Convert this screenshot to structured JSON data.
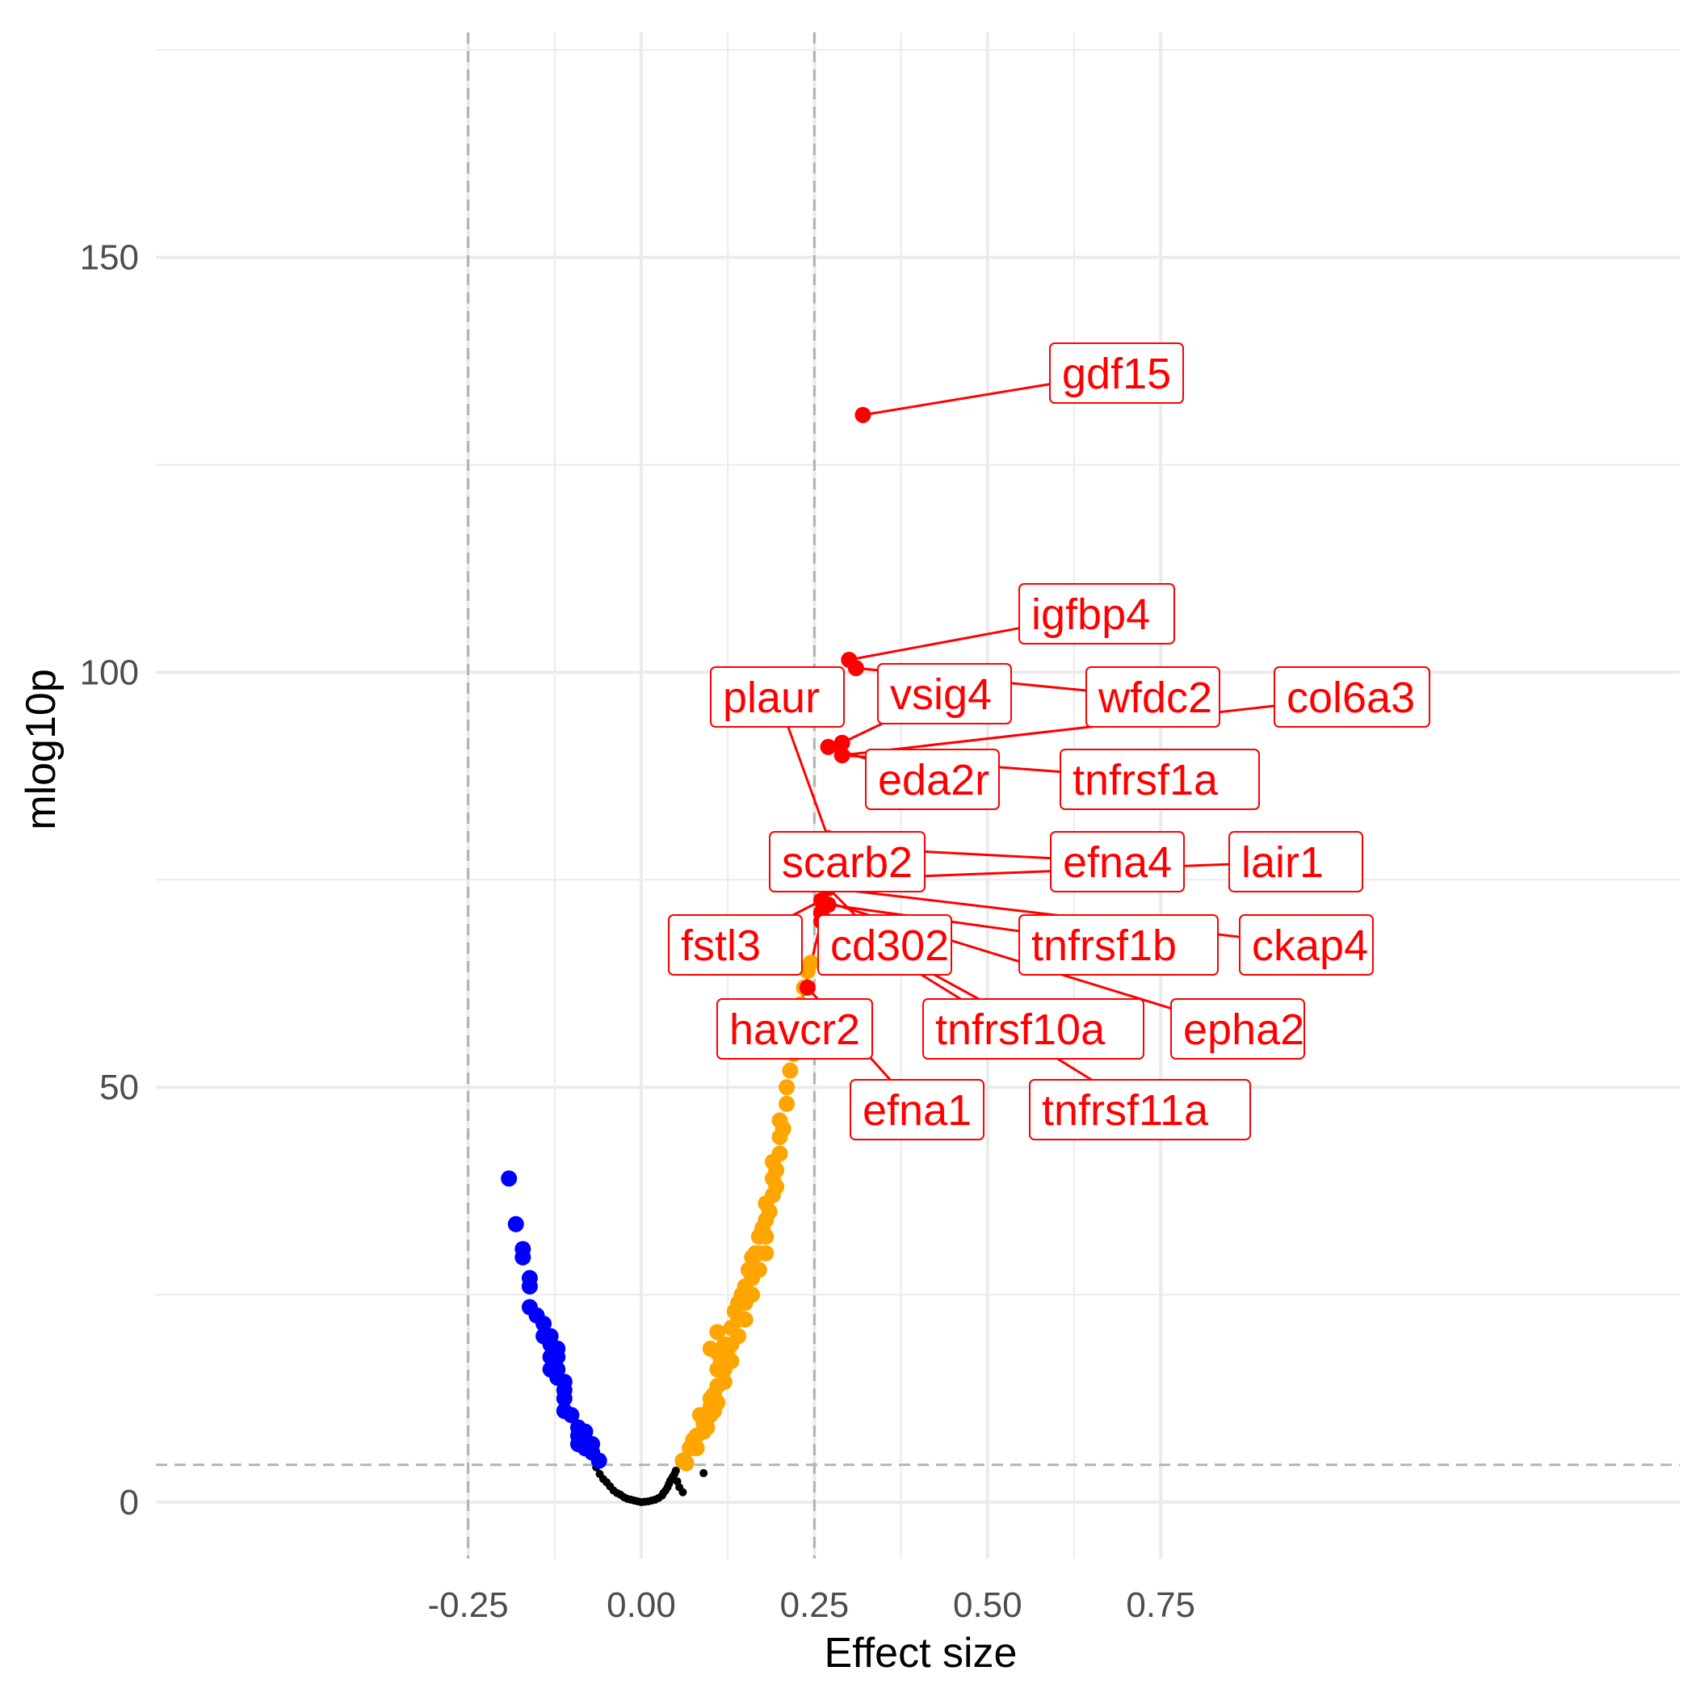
{
  "chart_data": {
    "type": "scatter",
    "title": "",
    "xlabel": "Effect size",
    "ylabel": "mlog10p",
    "xlim": [
      -0.35,
      0.75
    ],
    "ylim": [
      -7,
      175
    ],
    "x_ticks": [
      {
        "value": -0.25,
        "label": "-0.25"
      },
      {
        "value": 0.0,
        "label": "0.00"
      },
      {
        "value": 0.25,
        "label": "0.25"
      },
      {
        "value": 0.5,
        "label": "0.50"
      },
      {
        "value": 0.75,
        "label": "0.75"
      }
    ],
    "y_ticks": [
      {
        "value": 0,
        "label": "0"
      },
      {
        "value": 50,
        "label": "50"
      },
      {
        "value": 100,
        "label": "100"
      },
      {
        "value": 150,
        "label": "150"
      }
    ],
    "grid": true,
    "threshold_lines": {
      "x": [
        -0.25,
        0.25
      ],
      "y": [
        4.5
      ]
    },
    "colors": {
      "background": "#ffffff",
      "grid": "#ebebeb",
      "threshold": "#b3b3b3",
      "not_significant": "#000000",
      "negative": "#0000ff",
      "positive": "#ffa500",
      "highlighted": "#ff0000"
    },
    "series": [
      {
        "color": "#000000",
        "points": [
          [
            -0.065,
            4.2
          ],
          [
            -0.06,
            3.4
          ],
          [
            -0.055,
            2.8
          ],
          [
            -0.05,
            2.4
          ],
          [
            -0.045,
            1.9
          ],
          [
            -0.04,
            1.4
          ],
          [
            -0.035,
            1.1
          ],
          [
            -0.03,
            0.9
          ],
          [
            -0.025,
            0.6
          ],
          [
            -0.02,
            0.4
          ],
          [
            -0.015,
            0.3
          ],
          [
            -0.01,
            0.2
          ],
          [
            -0.005,
            0.1
          ],
          [
            0.0,
            0.0
          ],
          [
            0.005,
            0.05
          ],
          [
            0.01,
            0.1
          ],
          [
            0.015,
            0.2
          ],
          [
            0.02,
            0.3
          ],
          [
            0.025,
            0.5
          ],
          [
            0.03,
            0.8
          ],
          [
            0.032,
            1.1
          ],
          [
            0.035,
            1.4
          ],
          [
            0.038,
            1.8
          ],
          [
            0.04,
            2.2
          ],
          [
            0.042,
            2.6
          ],
          [
            0.045,
            3.0
          ],
          [
            0.048,
            3.4
          ],
          [
            0.05,
            3.8
          ],
          [
            0.052,
            2.5
          ],
          [
            0.055,
            1.8
          ],
          [
            0.06,
            1.2
          ],
          [
            0.09,
            3.5
          ]
        ]
      },
      {
        "color": "#0000ff",
        "points": [
          [
            -0.191,
            39
          ],
          [
            -0.181,
            33.5
          ],
          [
            -0.171,
            30.5
          ],
          [
            -0.171,
            29.5
          ],
          [
            -0.161,
            27
          ],
          [
            -0.161,
            26
          ],
          [
            -0.161,
            23.5
          ],
          [
            -0.151,
            22.5
          ],
          [
            -0.141,
            21.5
          ],
          [
            -0.141,
            20
          ],
          [
            -0.131,
            20
          ],
          [
            -0.131,
            19
          ],
          [
            -0.121,
            18.5
          ],
          [
            -0.121,
            17.5
          ],
          [
            -0.131,
            17.5
          ],
          [
            -0.131,
            16
          ],
          [
            -0.121,
            16
          ],
          [
            -0.121,
            15
          ],
          [
            -0.111,
            14.5
          ],
          [
            -0.111,
            13.5
          ],
          [
            -0.111,
            12.5
          ],
          [
            -0.111,
            11
          ],
          [
            -0.101,
            10.5
          ],
          [
            -0.091,
            9
          ],
          [
            -0.091,
            8
          ],
          [
            -0.081,
            8.5
          ],
          [
            -0.081,
            7.5
          ],
          [
            -0.091,
            7
          ],
          [
            -0.081,
            6.5
          ],
          [
            -0.071,
            7
          ],
          [
            -0.071,
            6
          ],
          [
            -0.061,
            5
          ]
        ]
      },
      {
        "color": "#ffa500",
        "points": [
          [
            0.06,
            5
          ],
          [
            0.065,
            4.7
          ],
          [
            0.07,
            6.5
          ],
          [
            0.075,
            7.5
          ],
          [
            0.08,
            8
          ],
          [
            0.08,
            6.5
          ],
          [
            0.085,
            10.5
          ],
          [
            0.09,
            9.5
          ],
          [
            0.09,
            8.5
          ],
          [
            0.095,
            9
          ],
          [
            0.1,
            10.5
          ],
          [
            0.1,
            11.5
          ],
          [
            0.1,
            12.5
          ],
          [
            0.105,
            13
          ],
          [
            0.105,
            11
          ],
          [
            0.1,
            18.5
          ],
          [
            0.11,
            20.5
          ],
          [
            0.11,
            18
          ],
          [
            0.11,
            16
          ],
          [
            0.11,
            14
          ],
          [
            0.11,
            12
          ],
          [
            0.115,
            17
          ],
          [
            0.12,
            19
          ],
          [
            0.12,
            16
          ],
          [
            0.12,
            14.5
          ],
          [
            0.125,
            18.5
          ],
          [
            0.13,
            21
          ],
          [
            0.13,
            19
          ],
          [
            0.13,
            17
          ],
          [
            0.135,
            23
          ],
          [
            0.14,
            24
          ],
          [
            0.14,
            22
          ],
          [
            0.14,
            20
          ],
          [
            0.145,
            25
          ],
          [
            0.15,
            26
          ],
          [
            0.15,
            24
          ],
          [
            0.15,
            22
          ],
          [
            0.155,
            28
          ],
          [
            0.16,
            29.5
          ],
          [
            0.16,
            27
          ],
          [
            0.16,
            25
          ],
          [
            0.165,
            30
          ],
          [
            0.17,
            32
          ],
          [
            0.17,
            30
          ],
          [
            0.17,
            28
          ],
          [
            0.175,
            33
          ],
          [
            0.18,
            34
          ],
          [
            0.18,
            32
          ],
          [
            0.18,
            30
          ],
          [
            0.18,
            36
          ],
          [
            0.185,
            35
          ],
          [
            0.19,
            37
          ],
          [
            0.19,
            39
          ],
          [
            0.19,
            41
          ],
          [
            0.195,
            38
          ],
          [
            0.195,
            40
          ],
          [
            0.2,
            42
          ],
          [
            0.2,
            44
          ],
          [
            0.2,
            46
          ],
          [
            0.205,
            45
          ],
          [
            0.21,
            48
          ],
          [
            0.21,
            50
          ],
          [
            0.215,
            52
          ],
          [
            0.22,
            54
          ],
          [
            0.22,
            56
          ],
          [
            0.225,
            58
          ],
          [
            0.23,
            60
          ],
          [
            0.235,
            62
          ],
          [
            0.24,
            64
          ],
          [
            0.245,
            65
          ]
        ]
      },
      {
        "color": "#ff0000",
        "points": [
          [
            0.32,
            131
          ],
          [
            0.3,
            101.5
          ],
          [
            0.31,
            100.5
          ],
          [
            0.27,
            91
          ],
          [
            0.29,
            91.5
          ],
          [
            0.29,
            90
          ],
          [
            0.27,
            80
          ],
          [
            0.28,
            79.5
          ],
          [
            0.27,
            78.5
          ],
          [
            0.26,
            77
          ],
          [
            0.27,
            75
          ],
          [
            0.27,
            74
          ],
          [
            0.26,
            72.5
          ],
          [
            0.27,
            72
          ],
          [
            0.26,
            71
          ],
          [
            0.26,
            70
          ],
          [
            0.24,
            62
          ]
        ]
      }
    ],
    "labels": [
      {
        "text": "gdf15",
        "x": 0.32,
        "y": 131
      },
      {
        "text": "igfbp4",
        "x": 0.3,
        "y": 101.5
      },
      {
        "text": "wfdc2",
        "x": 0.31,
        "y": 100.5
      },
      {
        "text": "col6a3",
        "x": 0.29,
        "y": 90
      },
      {
        "text": "plaur",
        "x": 0.27,
        "y": 80
      },
      {
        "text": "vsig4",
        "x": 0.29,
        "y": 91.5
      },
      {
        "text": "tnfrsf1a",
        "x": 0.29,
        "y": 90
      },
      {
        "text": "eda2r",
        "x": 0.27,
        "y": 91
      },
      {
        "text": "scarb2",
        "x": 0.26,
        "y": 77
      },
      {
        "text": "efna4",
        "x": 0.27,
        "y": 79
      },
      {
        "text": "lair1",
        "x": 0.27,
        "y": 75
      },
      {
        "text": "fstl3",
        "x": 0.26,
        "y": 72.5
      },
      {
        "text": "cd302",
        "x": 0.27,
        "y": 74
      },
      {
        "text": "tnfrsf1b",
        "x": 0.27,
        "y": 72
      },
      {
        "text": "ckap4",
        "x": 0.27,
        "y": 74
      },
      {
        "text": "havcr2",
        "x": 0.26,
        "y": 70
      },
      {
        "text": "tnfrsf10a",
        "x": 0.26,
        "y": 71
      },
      {
        "text": "epha2",
        "x": 0.26,
        "y": 72.5
      },
      {
        "text": "efna1",
        "x": 0.24,
        "y": 62
      },
      {
        "text": "tnfrsf11a",
        "x": 0.26,
        "y": 71
      }
    ]
  }
}
